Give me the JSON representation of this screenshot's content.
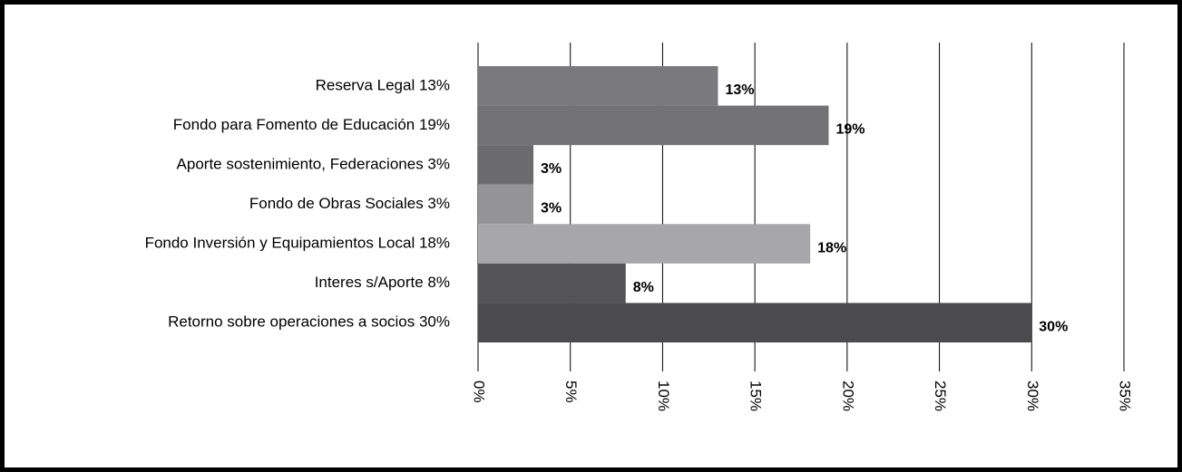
{
  "chart_data": {
    "type": "hbar",
    "categories": [
      "Reserva Legal 13%",
      "Fondo para Fomento de Educación 19%",
      "Aporte sostenimiento, Federaciones  3%",
      "Fondo de Obras Sociales  3%",
      "Fondo Inversión y Equipamientos Local 18%",
      "Interes s/Aporte  8%",
      "Retorno sobre operaciones a socios 30%"
    ],
    "values": [
      13,
      19,
      3,
      3,
      18,
      8,
      30
    ],
    "value_labels": [
      "13%",
      "19%",
      "3%",
      "3%",
      "18%",
      "8%",
      "30%"
    ],
    "colors": [
      "#7a7a7c",
      "#737376",
      "#6b6b6d",
      "#949496",
      "#a7a7a9",
      "#545456",
      "#4b4b4d"
    ],
    "xlim": [
      0,
      35
    ],
    "xticks": [
      {
        "value": 0,
        "label": "0%"
      },
      {
        "value": 5,
        "label": "5%"
      },
      {
        "value": 10,
        "label": "10%"
      },
      {
        "value": 15,
        "label": "15%"
      },
      {
        "value": 20,
        "label": "20%"
      },
      {
        "value": 25,
        "label": "25%"
      },
      {
        "value": 30,
        "label": "30%"
      },
      {
        "value": 35,
        "label": "35%"
      }
    ],
    "grid": true
  }
}
